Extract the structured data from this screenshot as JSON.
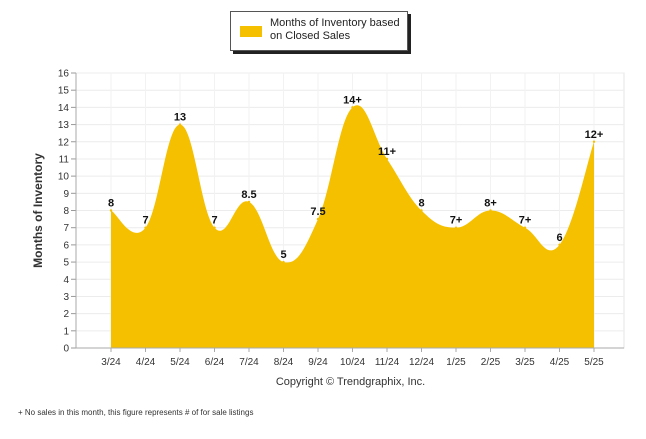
{
  "legend": {
    "label": "Months of Inventory based on Closed Sales",
    "color": "#F5C000"
  },
  "copyright": "Copyright © Trendgraphix, Inc.",
  "footnote": "+  No sales in this month, this figure represents # of for sale listings",
  "chart_data": {
    "type": "area",
    "categories": [
      "3/24",
      "4/24",
      "5/24",
      "6/24",
      "7/24",
      "8/24",
      "9/24",
      "10/24",
      "11/24",
      "12/24",
      "1/25",
      "2/25",
      "3/25",
      "4/25",
      "5/25"
    ],
    "series": [
      {
        "name": "Months of Inventory based on Closed Sales",
        "values": [
          8,
          7,
          13,
          7,
          8.5,
          5,
          7.5,
          14,
          11,
          8,
          7,
          8,
          7,
          6,
          12
        ],
        "labels": [
          "8",
          "7",
          "13",
          "7",
          "8.5",
          "5",
          "7.5",
          "14+",
          "11+",
          "8",
          "7+",
          "8+",
          "7+",
          "6",
          "12+"
        ],
        "color": "#F5C000"
      }
    ],
    "ylabel": "Months of Inventory",
    "xlabel": "",
    "ylim": [
      0,
      16
    ],
    "yticks": [
      0,
      1,
      2,
      3,
      4,
      5,
      6,
      7,
      8,
      9,
      10,
      11,
      12,
      13,
      14,
      15,
      16
    ],
    "grid": true,
    "legend_position": "top-center"
  }
}
